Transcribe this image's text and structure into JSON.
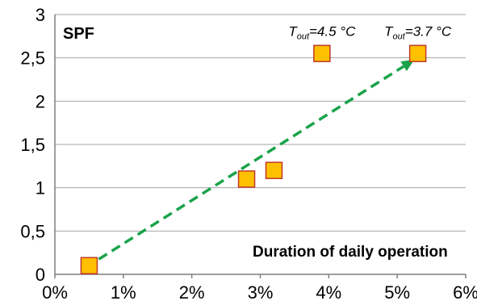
{
  "chart_data": {
    "type": "scatter",
    "title": "SPF",
    "xlabel": "Duration of daily operation",
    "ylabel": "",
    "xlim": [
      0,
      6
    ],
    "ylim": [
      0,
      3
    ],
    "x_ticks": [
      "0%",
      "1%",
      "2%",
      "3%",
      "4%",
      "5%",
      "6%"
    ],
    "y_ticks": [
      "0",
      "0,5",
      "1",
      "1,5",
      "2",
      "2,5",
      "3"
    ],
    "grid": true,
    "points": [
      {
        "x": 0.5,
        "y": 0.1
      },
      {
        "x": 2.8,
        "y": 1.1
      },
      {
        "x": 3.2,
        "y": 1.2
      },
      {
        "x": 3.9,
        "y": 2.55
      },
      {
        "x": 5.3,
        "y": 2.55
      }
    ],
    "trend_arrow": {
      "from": [
        0.5,
        0.1
      ],
      "to": [
        5.3,
        2.5
      ],
      "color": "#1aa34a"
    },
    "annotations": [
      {
        "base": "T",
        "sub": "out",
        "value": "=4.5 °C",
        "x": 3.9,
        "y": 2.55
      },
      {
        "base": "T",
        "sub": "out",
        "value": "=3.7 °C",
        "x": 5.3,
        "y": 2.55
      }
    ],
    "marker_fill": "#ffc000",
    "marker_stroke": "#c0392b"
  }
}
